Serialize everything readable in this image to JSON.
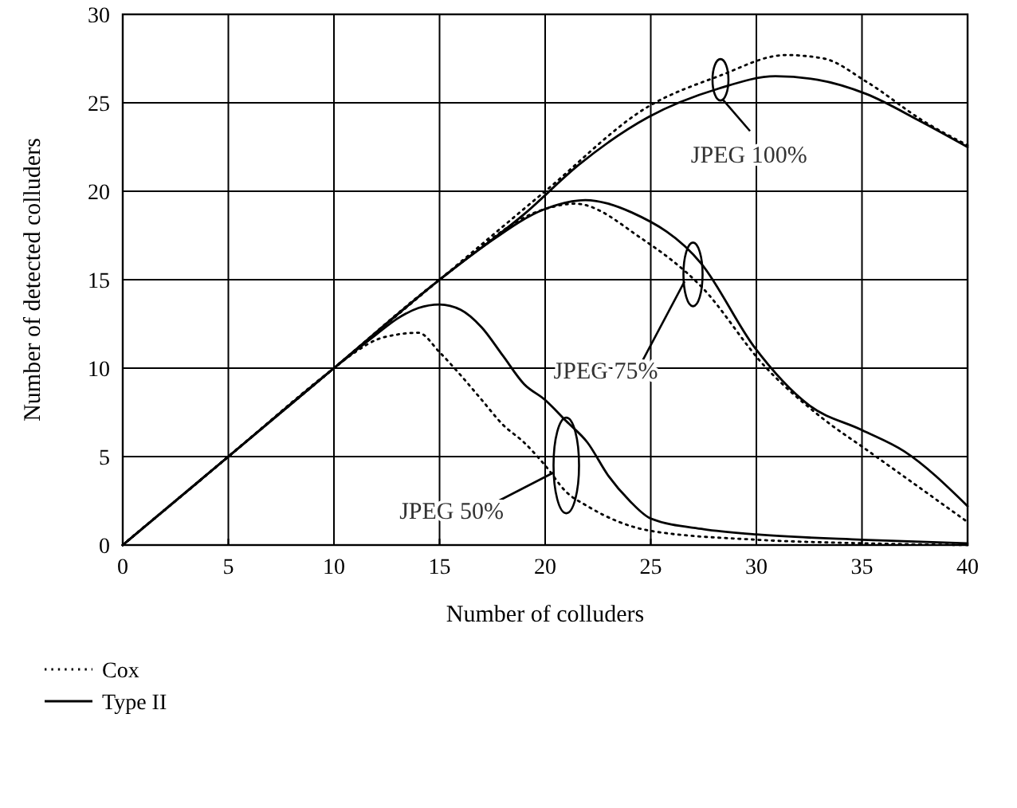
{
  "chart_data": {
    "type": "line",
    "xlabel": "Number of colluders",
    "ylabel": "Number of detected colluders",
    "xlim": [
      0,
      40
    ],
    "xticks": [
      0,
      5,
      10,
      15,
      20,
      25,
      30,
      35,
      40
    ],
    "ylim": [
      0,
      30
    ],
    "yticks": [
      0,
      5,
      10,
      15,
      20,
      25,
      30
    ],
    "grid": true,
    "legend": "bottom",
    "marker": "none",
    "series": [
      {
        "name": "Cox",
        "color": "#000000",
        "line_style": "dotted",
        "x": [
          0,
          5,
          10,
          15,
          20,
          21.4,
          24.6,
          27.4,
          30.4,
          33.2,
          35.2,
          40
        ],
        "values": [
          0,
          5,
          10,
          15,
          19,
          19.3,
          17.3,
          14.6,
          10.1,
          7.1,
          5.4,
          1.3
        ]
      },
      {
        "name": "Type II",
        "color": "#000000",
        "line_style": "solid",
        "x": [
          0,
          5,
          10,
          15,
          17.1,
          20,
          21.9,
          24.1,
          27.4,
          29.9,
          32.5,
          35,
          37,
          40
        ],
        "values": [
          0,
          5,
          10,
          15,
          16.9,
          19,
          19.5,
          18.8,
          15.9,
          11.2,
          7.9,
          6.5,
          5.3,
          2.2
        ]
      },
      {
        "color": "#000000",
        "line_style": "dotted",
        "x": [
          0,
          5,
          10,
          15,
          20,
          24.9,
          28.2,
          31.4,
          33.2,
          35.2,
          38,
          40
        ],
        "values": [
          0,
          5,
          10,
          15,
          20,
          24.8,
          26.5,
          27.7,
          27.5,
          26.2,
          23.9,
          22.6
        ]
      },
      {
        "color": "#000000",
        "line_style": "solid",
        "x": [
          0,
          5,
          10,
          15,
          19.1,
          21.6,
          24.9,
          28.2,
          30.9,
          32.9,
          35.2,
          37.7,
          40
        ],
        "values": [
          0,
          5,
          10,
          15,
          18.8,
          21.5,
          24.2,
          25.8,
          26.5,
          26.3,
          25.5,
          24,
          22.5
        ]
      },
      {
        "color": "#000000",
        "line_style": "dotted",
        "x": [
          0,
          5,
          10,
          11,
          12,
          13,
          14,
          15,
          16,
          17,
          18,
          19,
          20,
          21,
          22,
          25,
          30,
          35,
          40
        ],
        "values": [
          0,
          5,
          10,
          10.9,
          11.6,
          11.9,
          12,
          10.9,
          9.6,
          8.2,
          6.8,
          5.8,
          4.5,
          3,
          2.2,
          0.8,
          0.3,
          0.1,
          0
        ]
      },
      {
        "color": "#000000",
        "line_style": "solid",
        "x": [
          0,
          5,
          10,
          12,
          13,
          14,
          15,
          16,
          17,
          18,
          19,
          20,
          21,
          22,
          23,
          24,
          25,
          27.5,
          30,
          35,
          40
        ],
        "values": [
          0,
          5,
          10,
          11.9,
          12.8,
          13.4,
          13.6,
          13.3,
          12.3,
          10.7,
          9.1,
          8.2,
          7,
          5.8,
          3.9,
          2.5,
          1.5,
          0.9,
          0.6,
          0.3,
          0.1
        ]
      }
    ],
    "annotations": [
      {
        "text": "JPEG 100%",
        "x": 28.3,
        "y": 26.3
      },
      {
        "text": "JPEG 75%",
        "x": 26.7,
        "y": 15.3
      },
      {
        "text": "JPEG 50%",
        "x": 20,
        "y": 4.5
      }
    ]
  }
}
